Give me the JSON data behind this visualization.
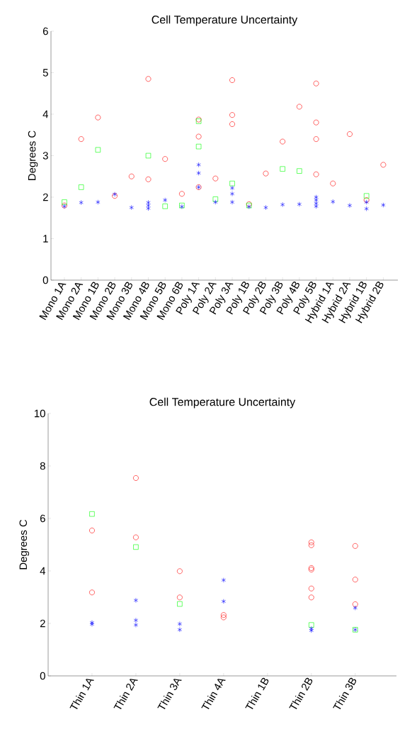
{
  "chart_data": [
    {
      "type": "scatter",
      "title": "Cell Temperature Uncertainty",
      "ylabel": "Degrees C",
      "categories": [
        "Mono 1A",
        "Mono 2A",
        "Mono 1B",
        "Mono 2B",
        "Mono 3B",
        "Mono 4B",
        "Mono 5B",
        "Mono 6B",
        "Poly 1A",
        "Poly 2A",
        "Poly 3A",
        "Poly 1B",
        "Poly 2B",
        "Poly 3B",
        "Poly 4B",
        "Poly 5B",
        "Hybrid 1A",
        "Hybrid 2A",
        "Hybrid 1B",
        "Hybrid 2B"
      ],
      "ylim": [
        0,
        6
      ],
      "yticks": [
        0,
        1,
        2,
        3,
        4,
        5,
        6
      ],
      "series": [
        {
          "color": "#ff0000",
          "marker": "circle",
          "x": [
            "Mono 1A",
            "Mono 2A",
            "Mono 1B",
            "Mono 2B",
            "Mono 3B",
            "Mono 4B",
            "Mono 4B",
            "Mono 5B",
            "Mono 6B",
            "Poly 1A",
            "Poly 1A",
            "Poly 1A",
            "Poly 2A",
            "Poly 3A",
            "Poly 3A",
            "Poly 3A",
            "Poly 1B",
            "Poly 2B",
            "Poly 3B",
            "Poly 4B",
            "Poly 5B",
            "Poly 5B",
            "Poly 5B",
            "Poly 5B",
            "Hybrid 1A",
            "Hybrid 2A",
            "Hybrid 1B",
            "Hybrid 2B"
          ],
          "values": [
            1.8,
            3.4,
            3.92,
            2.03,
            2.5,
            4.85,
            2.43,
            2.92,
            2.08,
            3.87,
            3.46,
            2.24,
            2.45,
            4.82,
            3.98,
            3.76,
            1.83,
            2.57,
            3.34,
            4.18,
            4.74,
            3.8,
            3.4,
            2.55,
            2.33,
            3.52,
            1.93,
            2.78
          ]
        },
        {
          "color": "#00ff00",
          "marker": "square",
          "x": [
            "Mono 1A",
            "Mono 2A",
            "Mono 1B",
            "Mono 4B",
            "Mono 5B",
            "Mono 6B",
            "Poly 1A",
            "Poly 1A",
            "Poly 2A",
            "Poly 3A",
            "Poly 1B",
            "Poly 3B",
            "Poly 4B",
            "Hybrid 1B"
          ],
          "values": [
            1.88,
            2.24,
            3.14,
            3.0,
            1.78,
            1.8,
            3.83,
            3.22,
            1.95,
            2.33,
            1.8,
            2.68,
            2.63,
            2.03
          ]
        },
        {
          "color": "#0000ff",
          "marker": "cross",
          "x": [
            "Mono 1A",
            "Mono 2A",
            "Mono 1B",
            "Mono 2B",
            "Mono 3B",
            "Mono 4B",
            "Mono 4B",
            "Mono 4B",
            "Mono 5B",
            "Mono 6B",
            "Poly 1A",
            "Poly 1A",
            "Poly 1A",
            "Poly 2A",
            "Poly 3A",
            "Poly 3A",
            "Poly 3A",
            "Poly 1B",
            "Poly 2B",
            "Poly 3B",
            "Poly 4B",
            "Poly 5B",
            "Poly 5B",
            "Poly 5B",
            "Poly 5B",
            "Hybrid 1A",
            "Hybrid 2A",
            "Hybrid 1B",
            "Hybrid 1B",
            "Hybrid 2B"
          ],
          "values": [
            1.78,
            1.87,
            1.88,
            2.07,
            1.75,
            1.87,
            1.8,
            1.73,
            1.93,
            1.77,
            2.78,
            2.58,
            2.24,
            1.88,
            2.22,
            2.08,
            1.88,
            1.77,
            1.75,
            1.82,
            1.83,
            2.0,
            1.93,
            1.85,
            1.78,
            1.89,
            1.8,
            1.88,
            1.72,
            1.81
          ]
        }
      ]
    },
    {
      "type": "scatter",
      "title": "Cell Temperature Uncertainty",
      "ylabel": "Degrees C",
      "categories": [
        "Thin 1A",
        "Thin 2A",
        "Thin 3A",
        "Thin 4A",
        "Thin 1B",
        "Thin 2B",
        "Thin 3B"
      ],
      "ylim": [
        0,
        10
      ],
      "yticks": [
        0,
        2,
        4,
        6,
        8,
        10
      ],
      "series": [
        {
          "color": "#ff0000",
          "marker": "circle",
          "x": [
            "Thin 1A",
            "Thin 1A",
            "Thin 2A",
            "Thin 2A",
            "Thin 3A",
            "Thin 3A",
            "Thin 4A",
            "Thin 4A",
            "Thin 2B",
            "Thin 2B",
            "Thin 2B",
            "Thin 2B",
            "Thin 2B",
            "Thin 2B",
            "Thin 3B",
            "Thin 3B",
            "Thin 3B"
          ],
          "values": [
            5.54,
            3.18,
            7.54,
            5.28,
            3.99,
            2.99,
            2.32,
            2.23,
            5.09,
            4.98,
            4.11,
            4.05,
            3.33,
            2.99,
            4.95,
            3.67,
            2.73
          ]
        },
        {
          "color": "#00ff00",
          "marker": "square",
          "x": [
            "Thin 1A",
            "Thin 2A",
            "Thin 3A",
            "Thin 2B",
            "Thin 3B"
          ],
          "values": [
            6.17,
            4.91,
            2.74,
            1.94,
            1.76
          ]
        },
        {
          "color": "#0000ff",
          "marker": "cross",
          "x": [
            "Thin 1A",
            "Thin 1A",
            "Thin 2A",
            "Thin 2A",
            "Thin 2A",
            "Thin 3A",
            "Thin 3A",
            "Thin 4A",
            "Thin 4A",
            "Thin 2B",
            "Thin 2B",
            "Thin 3B",
            "Thin 3B"
          ],
          "values": [
            2.03,
            1.97,
            2.88,
            2.12,
            1.94,
            1.98,
            1.76,
            3.65,
            2.84,
            1.8,
            1.73,
            2.59,
            1.76
          ]
        }
      ]
    }
  ]
}
